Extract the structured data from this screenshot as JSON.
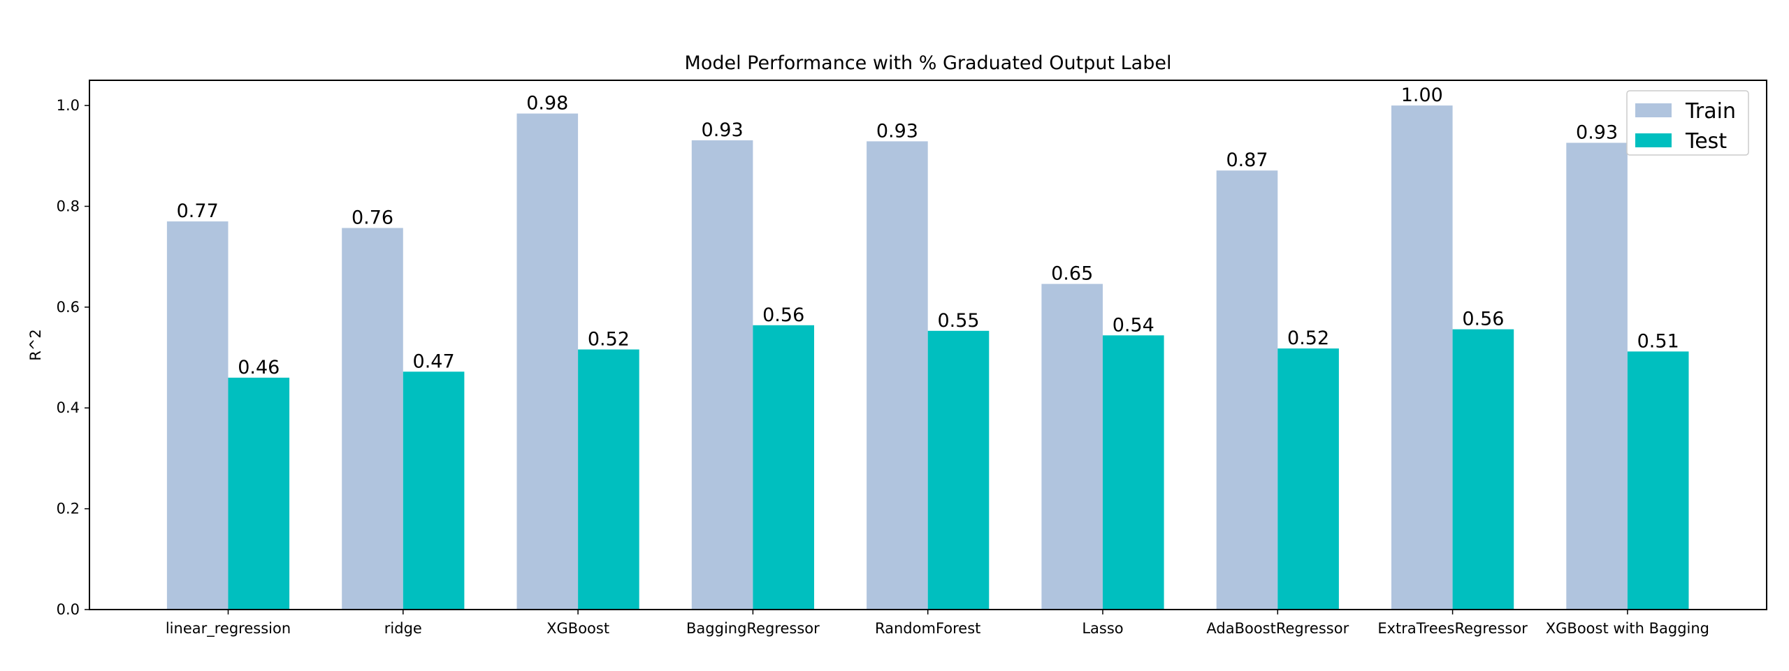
{
  "chart_data": {
    "type": "bar",
    "title": "Model Performance with % Graduated Output Label",
    "xlabel": "",
    "ylabel": "R^2",
    "ylim": [
      0,
      1.05
    ],
    "yticks": [
      0.0,
      0.2,
      0.4,
      0.6,
      0.8,
      1.0
    ],
    "ytick_labels": [
      "0.0",
      "0.2",
      "0.4",
      "0.6",
      "0.8",
      "1.0"
    ],
    "categories": [
      "linear_regression",
      "ridge",
      "XGBoost",
      "BaggingRegressor",
      "RandomForest",
      "Lasso",
      "AdaBoostRegressor",
      "ExtraTreesRegressor",
      "XGBoost with Bagging"
    ],
    "series": [
      {
        "name": "Train",
        "color": "#b0c4de",
        "values": [
          0.77,
          0.757,
          0.984,
          0.931,
          0.929,
          0.646,
          0.871,
          1.0,
          0.926
        ],
        "labels": [
          "0.77",
          "0.76",
          "0.98",
          "0.93",
          "0.93",
          "0.65",
          "0.87",
          "1.00",
          "0.93"
        ]
      },
      {
        "name": "Test",
        "color": "#00bfbf",
        "values": [
          0.46,
          0.472,
          0.516,
          0.564,
          0.553,
          0.544,
          0.518,
          0.556,
          0.512
        ],
        "labels": [
          "0.46",
          "0.47",
          "0.52",
          "0.56",
          "0.55",
          "0.54",
          "0.52",
          "0.56",
          "0.51"
        ]
      }
    ],
    "legend_position": "top-right",
    "grid": false
  }
}
